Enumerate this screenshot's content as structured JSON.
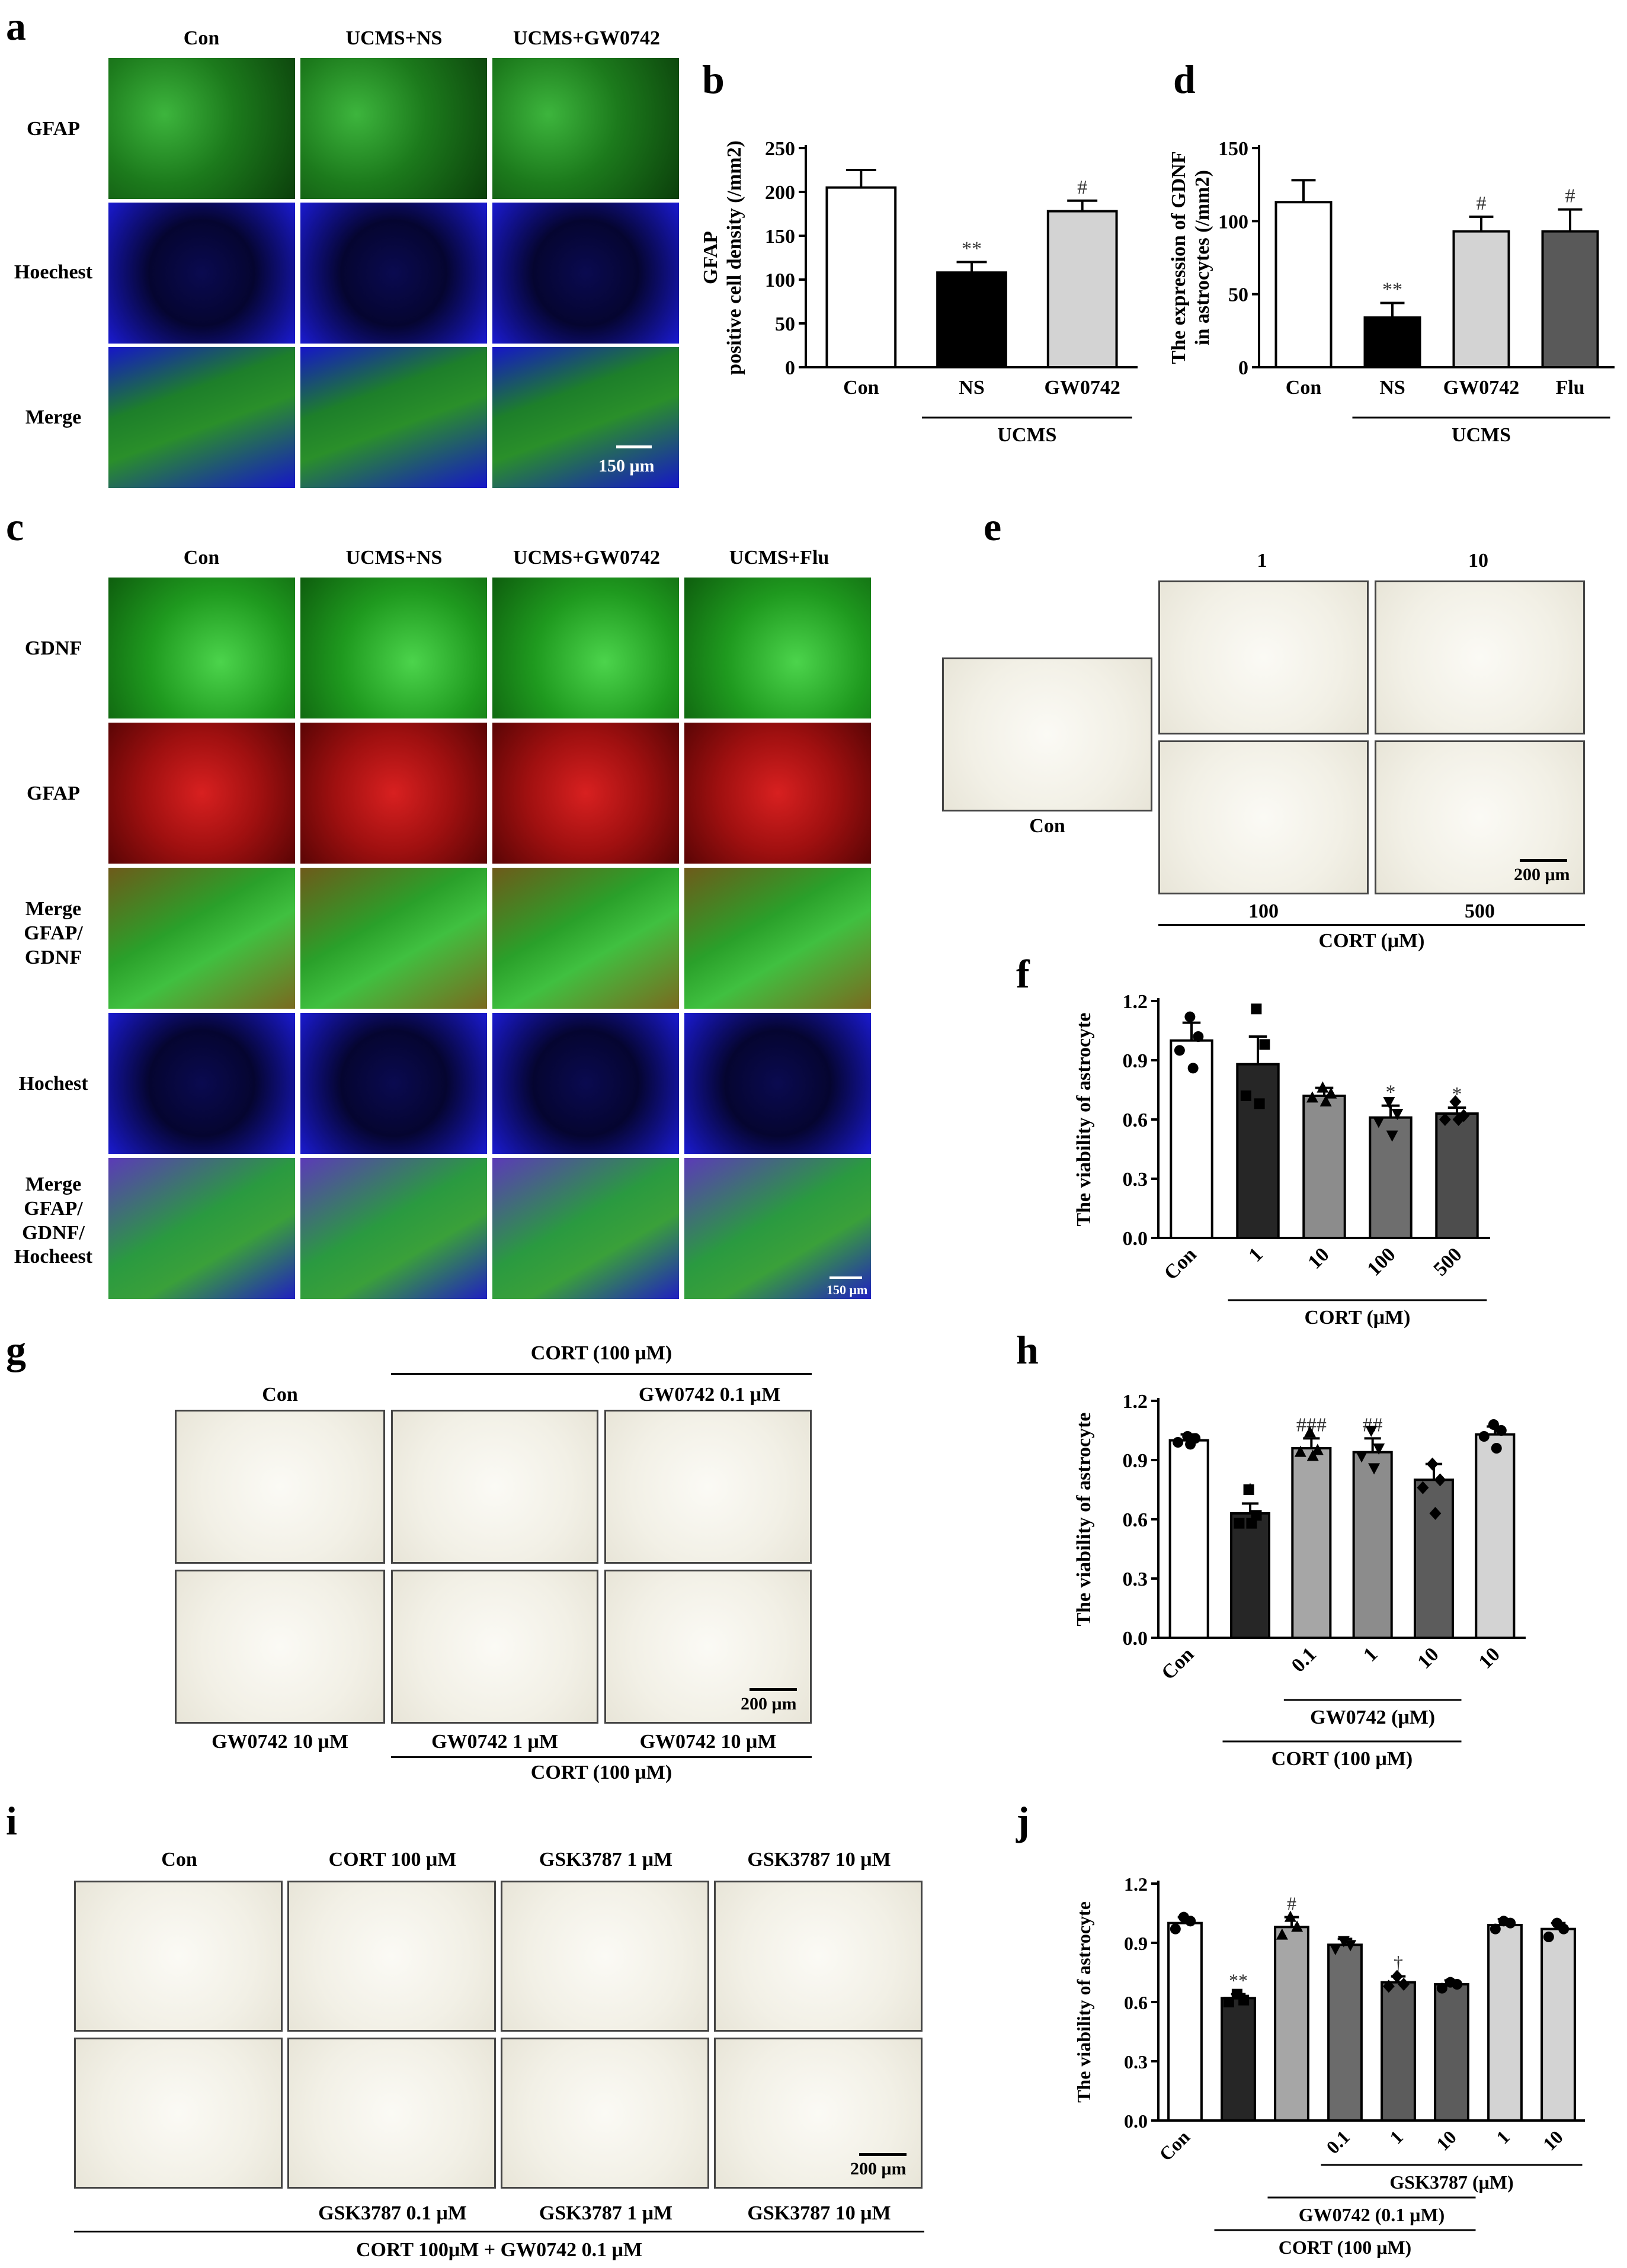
{
  "panels": {
    "a": {
      "label": "a",
      "cols": [
        "Con",
        "UCMS+NS",
        "UCMS+GW0742"
      ],
      "rows": [
        "GFAP",
        "Hoechest",
        "Merge"
      ],
      "scalebar": "150 μm"
    },
    "c": {
      "label": "c",
      "cols": [
        "Con",
        "UCMS+NS",
        "UCMS+GW0742",
        "UCMS+Flu"
      ],
      "rows": [
        "GDNF",
        "GFAP",
        "Merge\nGFAP/\nGDNF",
        "Hochest",
        "Merge\nGFAP/\nGDNF/\nHocheest"
      ],
      "scalebar": "150 μm"
    },
    "e": {
      "label": "e",
      "con": "Con",
      "top": [
        "1",
        "10"
      ],
      "bottom": [
        "100",
        "500"
      ],
      "group": "CORT (μM)",
      "scalebar": "200 μm"
    },
    "g": {
      "label": "g",
      "con": "Con",
      "top_group": "CORT (100 μM)",
      "top_sub": "GW0742 0.1 μM",
      "bottom": [
        "GW0742 10 μM",
        "GW0742 1 μM",
        "GW0742 10 μM"
      ],
      "bottom_group": "CORT (100 μM)",
      "scalebar": "200 μm"
    },
    "i": {
      "label": "i",
      "top": [
        "Con",
        "CORT 100 μM",
        "GSK3787 1 μM",
        "GSK3787 10 μM"
      ],
      "bottom": [
        "GSK3787 0.1 μM",
        "GSK3787 1 μM",
        "GSK3787 10 μM"
      ],
      "group": "CORT 100μM + GW0742 0.1 μM",
      "scalebar": "200 μm"
    }
  },
  "chart_data": [
    {
      "panel": "b",
      "type": "bar",
      "categories": [
        "Con",
        "NS",
        "GW0742"
      ],
      "values": [
        205,
        108,
        178
      ],
      "errors": [
        20,
        12,
        12
      ],
      "fills": [
        "#ffffff",
        "#000000",
        "#d3d3d3"
      ],
      "marks": [
        "",
        "**",
        "#"
      ],
      "ylabel": "GFAP\npositive cell density (/mm2)",
      "ylim": [
        0,
        250
      ],
      "yticks": [
        0,
        50,
        100,
        150,
        200,
        250
      ],
      "group_label": "UCMS",
      "group_span": [
        1,
        2
      ]
    },
    {
      "panel": "d",
      "type": "bar",
      "categories": [
        "Con",
        "NS",
        "GW0742",
        "Flu"
      ],
      "values": [
        113,
        34,
        93,
        93
      ],
      "errors": [
        15,
        10,
        10,
        15
      ],
      "fills": [
        "#ffffff",
        "#000000",
        "#d3d3d3",
        "#595959"
      ],
      "marks": [
        "",
        "**",
        "#",
        "#"
      ],
      "ylabel": "The expression of GDNF\nin astrocytes (/mm2)",
      "ylim": [
        0,
        150
      ],
      "yticks": [
        0,
        50,
        100,
        150
      ],
      "group_label": "UCMS",
      "group_span": [
        1,
        3
      ]
    },
    {
      "panel": "f",
      "type": "bar",
      "categories": [
        "Con",
        "1",
        "10",
        "100",
        "500"
      ],
      "values": [
        1.0,
        0.88,
        0.72,
        0.61,
        0.63
      ],
      "errors": [
        0.09,
        0.14,
        0.04,
        0.06,
        0.03
      ],
      "fills": [
        "#ffffff",
        "#262626",
        "#8c8c8c",
        "#6e6e6e",
        "#4d4d4d"
      ],
      "marks": [
        "",
        "",
        "",
        "*",
        "*"
      ],
      "points": [
        [
          1.12,
          1.02,
          0.95,
          0.86
        ],
        [
          1.16,
          0.98,
          0.72,
          0.68
        ],
        [
          0.76,
          0.73,
          0.71,
          0.69
        ],
        [
          0.69,
          0.63,
          0.59,
          0.52
        ],
        [
          0.69,
          0.62,
          0.6,
          0.6
        ]
      ],
      "markers": [
        "circle",
        "square",
        "triangle",
        "tri-down",
        "diamond"
      ],
      "ylabel": "The viability of astrocyte",
      "ylim": [
        0,
        1.2
      ],
      "yticks": [
        "0.0",
        "0.3",
        "0.6",
        "0.9",
        "1.2"
      ],
      "group_label": "CORT (μM)",
      "group_span": [
        1,
        4
      ]
    },
    {
      "panel": "h",
      "type": "bar",
      "categories": [
        "Con",
        "",
        "0.1",
        "1",
        "10",
        "10"
      ],
      "values": [
        1.0,
        0.63,
        0.96,
        0.94,
        0.8,
        1.03
      ],
      "errors": [
        0.03,
        0.05,
        0.05,
        0.07,
        0.08,
        0.04
      ],
      "fills": [
        "#ffffff",
        "#262626",
        "#a6a6a6",
        "#8c8c8c",
        "#5c5c5c",
        "#d3d3d3"
      ],
      "marks": [
        "",
        "*",
        "###",
        "##",
        "",
        ""
      ],
      "points": [
        [
          1.02,
          1.01,
          0.99,
          0.98
        ],
        [
          0.75,
          0.62,
          0.58,
          0.58
        ],
        [
          1.04,
          0.95,
          0.94,
          0.92
        ],
        [
          1.05,
          0.96,
          0.92,
          0.86
        ],
        [
          0.88,
          0.8,
          0.76,
          0.63
        ],
        [
          1.08,
          1.05,
          1.02,
          0.96
        ]
      ],
      "markers": [
        "circle",
        "square",
        "triangle",
        "tri-down",
        "diamond",
        "circle"
      ],
      "ylabel": "The viability of astrocyte",
      "ylim": [
        0,
        1.2
      ],
      "yticks": [
        "0.0",
        "0.3",
        "0.6",
        "0.9",
        "1.2"
      ],
      "group_label": "GW0742 (μM)",
      "group_span": [
        2,
        4
      ],
      "group2_label": "CORT (100 μM)",
      "group2_span": [
        1,
        4
      ]
    },
    {
      "panel": "j",
      "type": "bar",
      "categories": [
        "Con",
        "",
        "",
        "0.1",
        "1",
        "10",
        "1",
        "10"
      ],
      "values": [
        1.0,
        0.62,
        0.98,
        0.89,
        0.7,
        0.69,
        0.99,
        0.97
      ],
      "errors": [
        0.03,
        0.02,
        0.05,
        0.03,
        0.03,
        0.02,
        0.03,
        0.03
      ],
      "fills": [
        "#ffffff",
        "#262626",
        "#a6a6a6",
        "#6b6b6b",
        "#5c5c5c",
        "#5c5c5c",
        "#d3d3d3",
        "#d3d3d3"
      ],
      "marks": [
        "",
        "**",
        "#",
        "",
        "†",
        "",
        "",
        ""
      ],
      "points": [
        [
          1.03,
          1.01,
          0.97
        ],
        [
          0.64,
          0.61,
          0.6
        ],
        [
          1.03,
          0.98,
          0.94
        ],
        [
          0.91,
          0.89,
          0.87
        ],
        [
          0.73,
          0.69,
          0.68
        ],
        [
          0.7,
          0.69,
          0.67
        ],
        [
          1.01,
          1.0,
          0.97
        ],
        [
          1.0,
          0.97,
          0.93
        ]
      ],
      "markers": [
        "circle",
        "square",
        "triangle",
        "tri-down",
        "diamond",
        "circle",
        "circle",
        "circle"
      ],
      "ylabel": "The viability of astrocyte",
      "ylim": [
        0,
        1.2
      ],
      "yticks": [
        "0.0",
        "0.3",
        "0.6",
        "0.9",
        "1.2"
      ],
      "group_label": "GSK3787 (μM)",
      "group_span": [
        3,
        7
      ],
      "group2_label": "GW0742 (0.1 μM)",
      "group2_span": [
        2,
        5
      ],
      "group3_label": "CORT (100 μM)",
      "group3_span": [
        1,
        5
      ]
    }
  ]
}
